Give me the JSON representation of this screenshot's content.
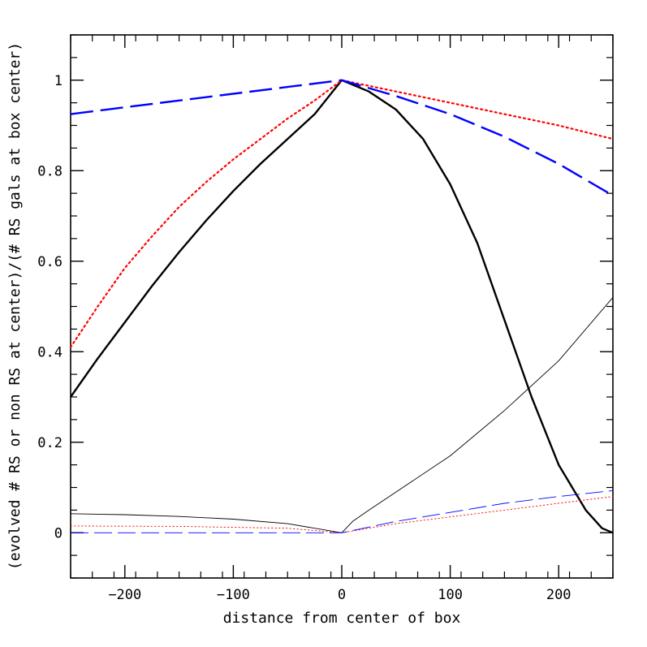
{
  "chart_data": {
    "type": "line",
    "title": "",
    "xlabel": "distance from center of box",
    "ylabel": "(evolved # RS or non RS at center)/(# RS gals at box center)",
    "xlim": [
      -250,
      250
    ],
    "ylim": [
      -0.1,
      1.1
    ],
    "xticks_major": [
      -200,
      -100,
      0,
      100,
      200
    ],
    "xticks_minor_step": 20,
    "yticks_major": [
      0,
      0.2,
      0.4,
      0.6,
      0.8,
      1
    ],
    "yticks_minor_step": 0.05,
    "xtick_labels": [
      "−200",
      "−100",
      "0",
      "100",
      "200"
    ],
    "ytick_labels": [
      "0",
      "0.2",
      "0.4",
      "0.6",
      "0.8",
      "1"
    ],
    "grid": false,
    "legend": "none",
    "series": [
      {
        "color": "#000000",
        "style": "solid",
        "width": 2.4,
        "points": [
          [
            -250,
            0.3
          ],
          [
            -225,
            0.385
          ],
          [
            -200,
            0.465
          ],
          [
            -175,
            0.545
          ],
          [
            -150,
            0.62
          ],
          [
            -125,
            0.69
          ],
          [
            -100,
            0.755
          ],
          [
            -75,
            0.815
          ],
          [
            -50,
            0.87
          ],
          [
            -25,
            0.925
          ],
          [
            0,
            1.0
          ],
          [
            25,
            0.975
          ],
          [
            50,
            0.935
          ],
          [
            75,
            0.87
          ],
          [
            100,
            0.77
          ],
          [
            125,
            0.64
          ],
          [
            150,
            0.47
          ],
          [
            175,
            0.3
          ],
          [
            200,
            0.15
          ],
          [
            225,
            0.05
          ],
          [
            240,
            0.01
          ],
          [
            250,
            0.0
          ]
        ]
      },
      {
        "color": "#ff0000",
        "style": "dotted",
        "width": 2.2,
        "points": [
          [
            -250,
            0.41
          ],
          [
            -225,
            0.5
          ],
          [
            -200,
            0.585
          ],
          [
            -175,
            0.655
          ],
          [
            -150,
            0.72
          ],
          [
            -125,
            0.775
          ],
          [
            -100,
            0.825
          ],
          [
            -75,
            0.87
          ],
          [
            -50,
            0.915
          ],
          [
            -25,
            0.955
          ],
          [
            0,
            1.0
          ],
          [
            50,
            0.975
          ],
          [
            100,
            0.95
          ],
          [
            150,
            0.925
          ],
          [
            200,
            0.9
          ],
          [
            250,
            0.87
          ]
        ]
      },
      {
        "color": "#0000ff",
        "style": "longdash",
        "width": 2.4,
        "points": [
          [
            -250,
            0.925
          ],
          [
            -200,
            0.94
          ],
          [
            -150,
            0.955
          ],
          [
            -100,
            0.97
          ],
          [
            -50,
            0.985
          ],
          [
            0,
            1.0
          ],
          [
            50,
            0.965
          ],
          [
            100,
            0.925
          ],
          [
            150,
            0.875
          ],
          [
            200,
            0.815
          ],
          [
            250,
            0.745
          ]
        ]
      },
      {
        "color": "#000000",
        "style": "solid",
        "width": 0.9,
        "points": [
          [
            -250,
            0.042
          ],
          [
            -200,
            0.04
          ],
          [
            -150,
            0.036
          ],
          [
            -100,
            0.03
          ],
          [
            -50,
            0.02
          ],
          [
            0,
            0.0
          ],
          [
            10,
            0.025
          ],
          [
            25,
            0.05
          ],
          [
            50,
            0.09
          ],
          [
            100,
            0.17
          ],
          [
            150,
            0.27
          ],
          [
            200,
            0.38
          ],
          [
            250,
            0.52
          ]
        ]
      },
      {
        "color": "#ff0000",
        "style": "dotted",
        "width": 0.9,
        "points": [
          [
            -250,
            0.015
          ],
          [
            -150,
            0.014
          ],
          [
            -50,
            0.01
          ],
          [
            0,
            0.0
          ],
          [
            50,
            0.02
          ],
          [
            100,
            0.035
          ],
          [
            150,
            0.05
          ],
          [
            200,
            0.065
          ],
          [
            250,
            0.08
          ]
        ]
      },
      {
        "color": "#0000ff",
        "style": "longdash",
        "width": 0.9,
        "points": [
          [
            -250,
            0.0
          ],
          [
            -150,
            0.0
          ],
          [
            -50,
            0.0
          ],
          [
            0,
            0.0
          ],
          [
            50,
            0.025
          ],
          [
            100,
            0.045
          ],
          [
            150,
            0.065
          ],
          [
            200,
            0.08
          ],
          [
            250,
            0.093
          ]
        ]
      }
    ]
  }
}
